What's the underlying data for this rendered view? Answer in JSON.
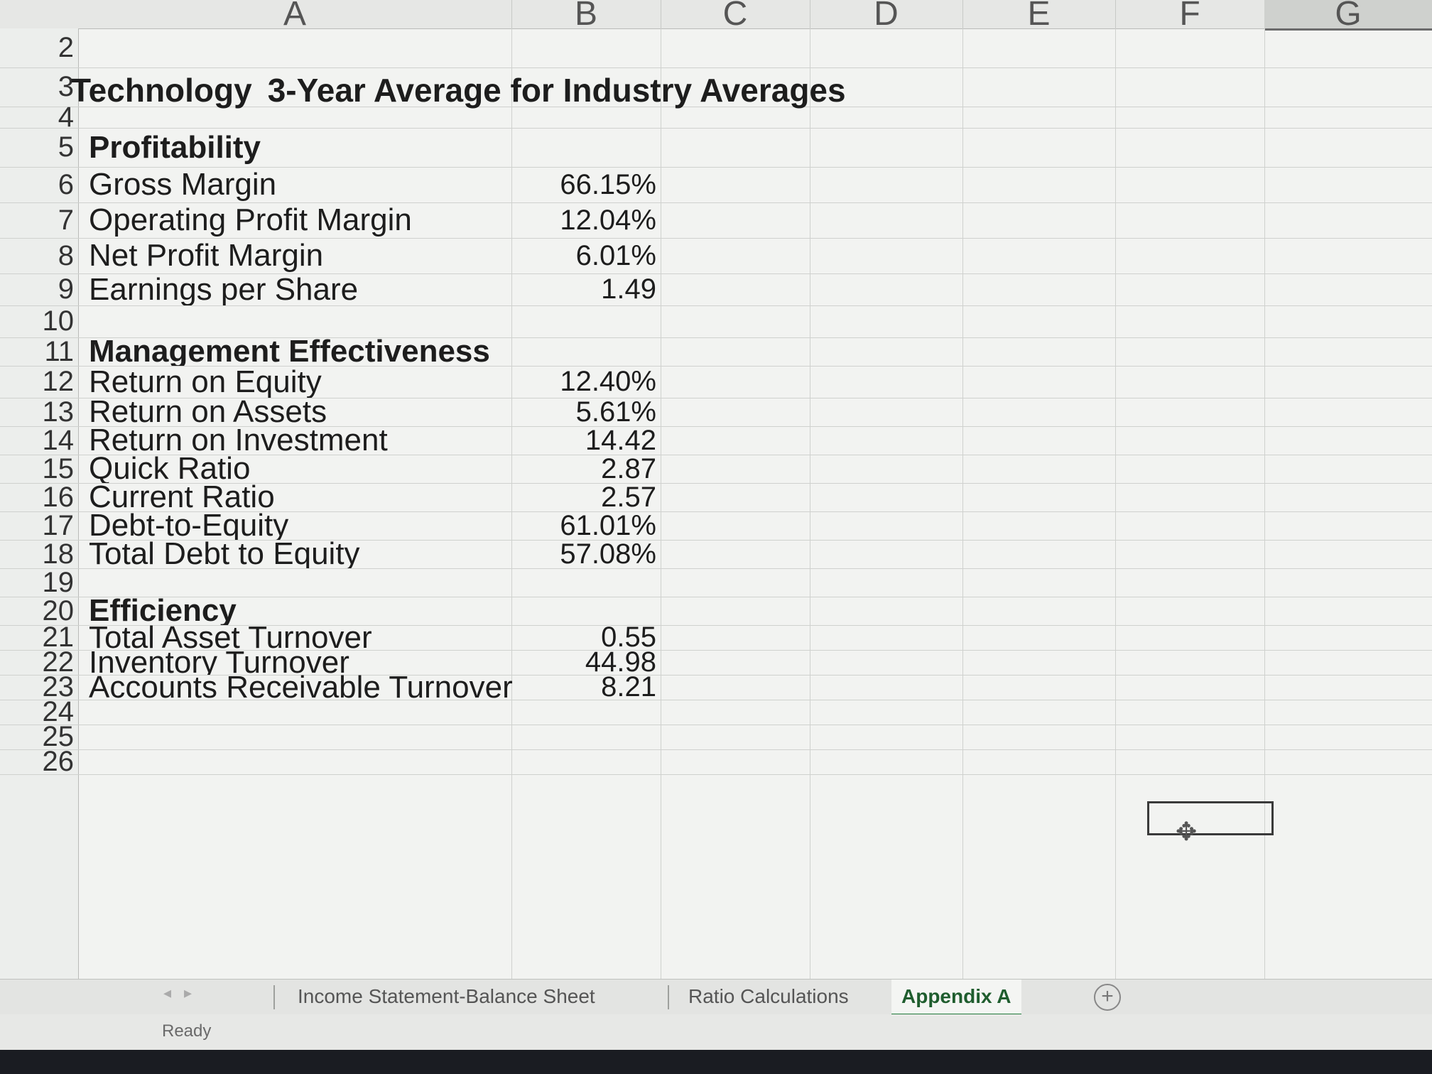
{
  "columns": [
    "A",
    "B",
    "C",
    "D",
    "E",
    "F",
    "G"
  ],
  "title": {
    "part1": "Technology",
    "part2": "3-Year Average for Industry Averages"
  },
  "rows": [
    {
      "num": "2",
      "label": "",
      "value": ""
    },
    {
      "num": "3",
      "label": "",
      "value": ""
    },
    {
      "num": "4",
      "label": "",
      "value": ""
    },
    {
      "num": "5",
      "label": "Profitability",
      "value": ""
    },
    {
      "num": "6",
      "label": "Gross Margin",
      "value": "66.15%"
    },
    {
      "num": "7",
      "label": "Operating Profit Margin",
      "value": "12.04%"
    },
    {
      "num": "8",
      "label": "Net Profit Margin",
      "value": "6.01%"
    },
    {
      "num": "9",
      "label": "Earnings per Share",
      "value": "1.49"
    },
    {
      "num": "10",
      "label": "",
      "value": ""
    },
    {
      "num": "11",
      "label": "Management Effectiveness",
      "value": ""
    },
    {
      "num": "12",
      "label": "Return on Equity",
      "value": "12.40%"
    },
    {
      "num": "13",
      "label": "Return on Assets",
      "value": "5.61%"
    },
    {
      "num": "14",
      "label": "Return on Investment",
      "value": "14.42"
    },
    {
      "num": "15",
      "label": "Quick Ratio",
      "value": "2.87"
    },
    {
      "num": "16",
      "label": "Current Ratio",
      "value": "2.57"
    },
    {
      "num": "17",
      "label": "Debt-to-Equity",
      "value": "61.01%"
    },
    {
      "num": "18",
      "label": "Total Debt to Equity",
      "value": "57.08%"
    },
    {
      "num": "19",
      "label": "",
      "value": ""
    },
    {
      "num": "20",
      "label": "Efficiency",
      "value": ""
    },
    {
      "num": "21",
      "label": "Total Asset Turnover",
      "value": "0.55"
    },
    {
      "num": "22",
      "label": "Inventory Turnover",
      "value": "44.98"
    },
    {
      "num": "23",
      "label": "Accounts Receivable Turnover",
      "value": "8.21"
    },
    {
      "num": "24",
      "label": "",
      "value": ""
    },
    {
      "num": "25",
      "label": "",
      "value": ""
    },
    {
      "num": "26",
      "label": "",
      "value": ""
    }
  ],
  "tabs": [
    {
      "label": "Income Statement-Balance Sheet",
      "active": false
    },
    {
      "label": "Ratio Calculations",
      "active": false
    },
    {
      "label": "Appendix A",
      "active": true
    }
  ],
  "add_tab_icon": "plus-circle-icon",
  "status": "Ready",
  "accent_color": "#1f7a3a"
}
